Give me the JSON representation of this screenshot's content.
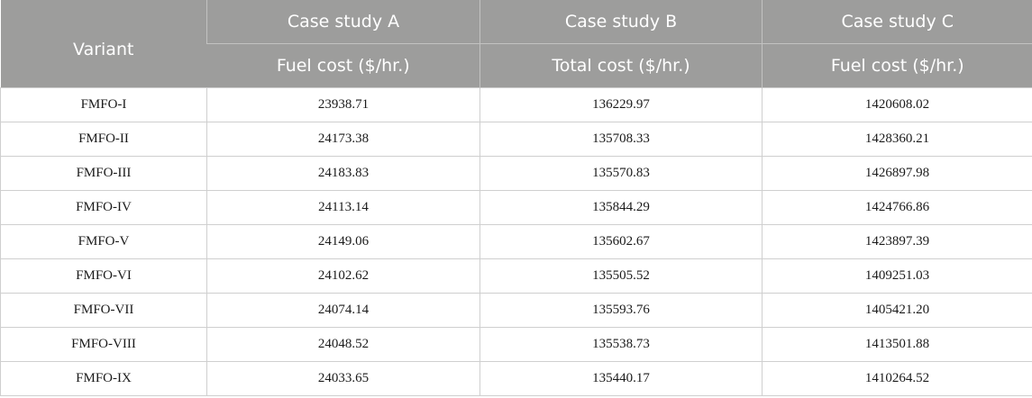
{
  "header": {
    "variant": "Variant",
    "groups": [
      "Case study A",
      "Case study B",
      "Case study C"
    ],
    "subheaders": [
      "Fuel cost ($/hr.)",
      "Total cost ($/hr.)",
      "Fuel cost ($/hr.)"
    ]
  },
  "rows": [
    [
      "FMFO-I",
      "23938.71",
      "136229.97",
      "1420608.02"
    ],
    [
      "FMFO-II",
      "24173.38",
      "135708.33",
      "1428360.21"
    ],
    [
      "FMFO-III",
      "24183.83",
      "135570.83",
      "1426897.98"
    ],
    [
      "FMFO-IV",
      "24113.14",
      "135844.29",
      "1424766.86"
    ],
    [
      "FMFO-V",
      "24149.06",
      "135602.67",
      "1423897.39"
    ],
    [
      "FMFO-VI",
      "24102.62",
      "135505.52",
      "1409251.03"
    ],
    [
      "FMFO-VII",
      "24074.14",
      "135593.76",
      "1405421.20"
    ],
    [
      "FMFO-VIII",
      "24048.52",
      "135538.73",
      "1413501.88"
    ],
    [
      "FMFO-IX",
      "24033.65",
      "135440.17",
      "1410264.52"
    ]
  ]
}
